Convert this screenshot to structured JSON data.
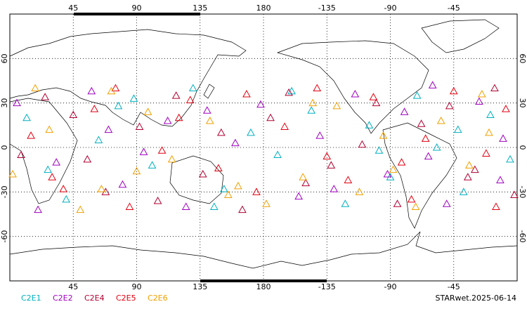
{
  "chart_data": {
    "type": "scatter",
    "title": "STARwet.2025-06-14",
    "xlim": [
      0,
      360
    ],
    "ylim": [
      -90,
      90
    ],
    "xticks": [
      45,
      90,
      135,
      180,
      {
        "value": 225,
        "label": "-135"
      },
      {
        "value": 270,
        "label": "-90"
      },
      {
        "value": 315,
        "label": "-45"
      }
    ],
    "yticks": [
      -60,
      -30,
      0,
      30,
      60
    ],
    "grid": true,
    "series": [
      {
        "name": "C2E1",
        "color": "#00b0c0",
        "x": [
          12,
          40,
          63,
          88,
          101,
          130,
          152,
          171,
          190,
          214,
          238,
          255,
          270,
          289,
          303,
          322,
          341,
          355,
          27,
          77,
          145,
          200,
          262,
          318
        ],
        "values": [
          20,
          -35,
          5,
          33,
          -12,
          40,
          -28,
          10,
          -5,
          25,
          -38,
          15,
          -20,
          35,
          0,
          -30,
          22,
          -8,
          -15,
          28,
          -40,
          38,
          -2,
          12
        ]
      },
      {
        "name": "C2E2",
        "color": "#a000c0",
        "x": [
          5,
          33,
          58,
          80,
          112,
          125,
          160,
          178,
          205,
          220,
          245,
          268,
          280,
          297,
          310,
          333,
          348,
          20,
          70,
          95,
          140,
          230,
          300,
          350
        ],
        "values": [
          30,
          -10,
          38,
          -25,
          18,
          -40,
          3,
          29,
          -33,
          8,
          36,
          -18,
          24,
          -6,
          -38,
          31,
          -22,
          -42,
          12,
          -3,
          25,
          -28,
          42,
          6
        ]
      },
      {
        "name": "C2E4",
        "color": "#b00030",
        "x": [
          8,
          45,
          68,
          92,
          118,
          137,
          165,
          185,
          198,
          228,
          250,
          275,
          292,
          312,
          330,
          344,
          358,
          25,
          55,
          105,
          150,
          210,
          260,
          325
        ],
        "values": [
          -5,
          22,
          -30,
          14,
          35,
          -18,
          -42,
          20,
          37,
          -12,
          2,
          -38,
          16,
          28,
          -15,
          40,
          -32,
          34,
          -8,
          -36,
          10,
          -24,
          30,
          -20
        ]
      },
      {
        "name": "C2E5",
        "color": "#e00010",
        "x": [
          15,
          38,
          60,
          85,
          108,
          128,
          148,
          175,
          195,
          218,
          240,
          258,
          278,
          295,
          315,
          338,
          352,
          30,
          75,
          120,
          168,
          225,
          285,
          345
        ],
        "values": [
          8,
          -28,
          26,
          -40,
          -2,
          32,
          -14,
          -30,
          14,
          40,
          -22,
          34,
          -10,
          6,
          38,
          -4,
          26,
          -20,
          40,
          20,
          36,
          -6,
          -35,
          -40
        ]
      },
      {
        "name": "C2E6",
        "color": "#f0a000",
        "x": [
          2,
          28,
          50,
          72,
          98,
          115,
          142,
          162,
          182,
          208,
          232,
          248,
          265,
          288,
          306,
          326,
          340,
          18,
          65,
          90,
          155,
          215,
          272,
          335
        ],
        "values": [
          -18,
          12,
          -42,
          38,
          24,
          -8,
          18,
          -26,
          -38,
          -20,
          28,
          -30,
          8,
          -40,
          18,
          -12,
          10,
          40,
          -28,
          -16,
          -32,
          30,
          -15,
          36
        ]
      }
    ]
  }
}
